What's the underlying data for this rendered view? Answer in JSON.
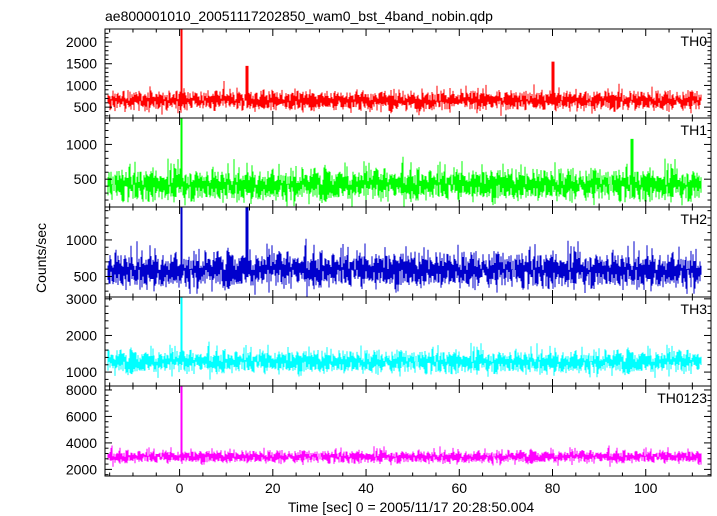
{
  "chart_data": {
    "type": "line",
    "title": "ae800001010_20051117202850_wam0_bst_4band_nobin.qdp",
    "xlabel": "Time [sec] 0 = 2005/11/17 20:28:50.004",
    "ylabel": "Counts/sec",
    "xlim": [
      -16,
      114
    ],
    "x_ticks": [
      0,
      20,
      40,
      60,
      80,
      100
    ],
    "panels": [
      {
        "name": "TH0",
        "color": "#ff0000",
        "ylim": [
          250,
          2300
        ],
        "y_ticks": [
          500,
          1000,
          1500,
          2000
        ],
        "baseline": 650,
        "noise": 160,
        "spike_peak": 2300,
        "features": [
          {
            "x": 14.5,
            "y": 1450
          },
          {
            "x": 80,
            "y": 1550
          }
        ]
      },
      {
        "name": "TH1",
        "color": "#00ff00",
        "ylim": [
          100,
          1380
        ],
        "y_ticks": [
          500,
          1000
        ],
        "baseline": 420,
        "noise": 160,
        "spike_peak": 1380,
        "features": [
          {
            "x": 97,
            "y": 1080
          }
        ]
      },
      {
        "name": "TH2",
        "color": "#0000cc",
        "ylim": [
          220,
          1450
        ],
        "y_ticks": [
          500,
          1000
        ],
        "baseline": 590,
        "noise": 170,
        "spike_peak": 1450,
        "features": [
          {
            "x": 14.5,
            "y": 1450
          }
        ]
      },
      {
        "name": "TH3",
        "color": "#00ffff",
        "ylim": [
          620,
          3050
        ],
        "y_ticks": [
          1000,
          2000,
          3000
        ],
        "baseline": 1280,
        "noise": 220,
        "spike_peak": 3050,
        "features": []
      },
      {
        "name": "TH0123",
        "color": "#ff00ff",
        "ylim": [
          1500,
          8300
        ],
        "y_ticks": [
          2000,
          4000,
          6000,
          8000
        ],
        "baseline": 2950,
        "noise": 340,
        "spike_peak": 8300,
        "features": []
      }
    ],
    "spike_x": 0.4,
    "grid": false,
    "legend": "none"
  }
}
